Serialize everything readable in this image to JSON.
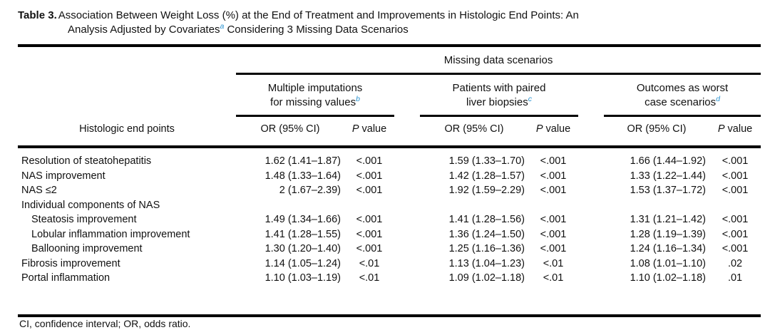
{
  "title": {
    "label": "Table 3.",
    "line1": "Association Between Weight Loss (%) at the End of Treatment and Improvements in Histologic End Points: An",
    "line2_pre": "Analysis Adjusted by Covariates",
    "line2_sup": "a",
    "line2_post": " Considering 3 Missing Data Scenarios"
  },
  "colors": {
    "footnote_marker_blue": "#2b93d1",
    "text": "#111111",
    "rule": "#000000",
    "background": "#ffffff"
  },
  "table": {
    "span_header": "Missing data scenarios",
    "row_header": "Histologic end points",
    "groups": [
      {
        "line1": "Multiple imputations",
        "line2": "for missing values",
        "sup": "b"
      },
      {
        "line1": "Patients with paired",
        "line2": "liver biopsies",
        "sup": "c"
      },
      {
        "line1": "Outcomes as worst",
        "line2": "case scenarios",
        "sup": "d"
      }
    ],
    "or_header": "OR (95% CI)",
    "p_header_italic": "P",
    "p_header_rest": " value",
    "rows": [
      {
        "label": "Resolution of steatohepatitis",
        "indent": false,
        "cells": [
          "1.62 (1.41–1.87)",
          "<.001",
          "1.59 (1.33–1.70)",
          "<.001",
          "1.66 (1.44–1.92)",
          "<.001"
        ]
      },
      {
        "label": "NAS improvement",
        "indent": false,
        "cells": [
          "1.48 (1.33–1.64)",
          "<.001",
          "1.42 (1.28–1.57)",
          "<.001",
          "1.33 (1.22–1.44)",
          "<.001"
        ]
      },
      {
        "label": "NAS ≤2",
        "indent": false,
        "cells": [
          "2 (1.67–2.39)",
          "<.001",
          "1.92 (1.59–2.29)",
          "<.001",
          "1.53 (1.37–1.72)",
          "<.001"
        ]
      },
      {
        "label": "Individual components of NAS",
        "indent": false,
        "cells": [
          "",
          "",
          "",
          "",
          "",
          ""
        ]
      },
      {
        "label": "Steatosis improvement",
        "indent": true,
        "cells": [
          "1.49 (1.34–1.66)",
          "<.001",
          "1.41 (1.28–1.56)",
          "<.001",
          "1.31 (1.21–1.42)",
          "<.001"
        ]
      },
      {
        "label": "Lobular inflammation improvement",
        "indent": true,
        "cells": [
          "1.41 (1.28–1.55)",
          "<.001",
          "1.36 (1.24–1.50)",
          "<.001",
          "1.28 (1.19–1.39)",
          "<.001"
        ]
      },
      {
        "label": "Ballooning improvement",
        "indent": true,
        "cells": [
          "1.30 (1.20–1.40)",
          "<.001",
          "1.25 (1.16–1.36)",
          "<.001",
          "1.24 (1.16–1.34)",
          "<.001"
        ]
      },
      {
        "label": "Fibrosis improvement",
        "indent": false,
        "cells": [
          "1.14 (1.05–1.24)",
          "<.01",
          "1.13 (1.04–1.23)",
          "<.01",
          "1.08 (1.01–1.10)",
          ".02"
        ]
      },
      {
        "label": "Portal inflammation",
        "indent": false,
        "cells": [
          "1.10 (1.03–1.19)",
          "<.01",
          "1.09 (1.02–1.18)",
          "<.01",
          "1.10 (1.02–1.18)",
          ".01"
        ]
      }
    ]
  },
  "footnote": "CI, confidence interval; OR, odds ratio."
}
